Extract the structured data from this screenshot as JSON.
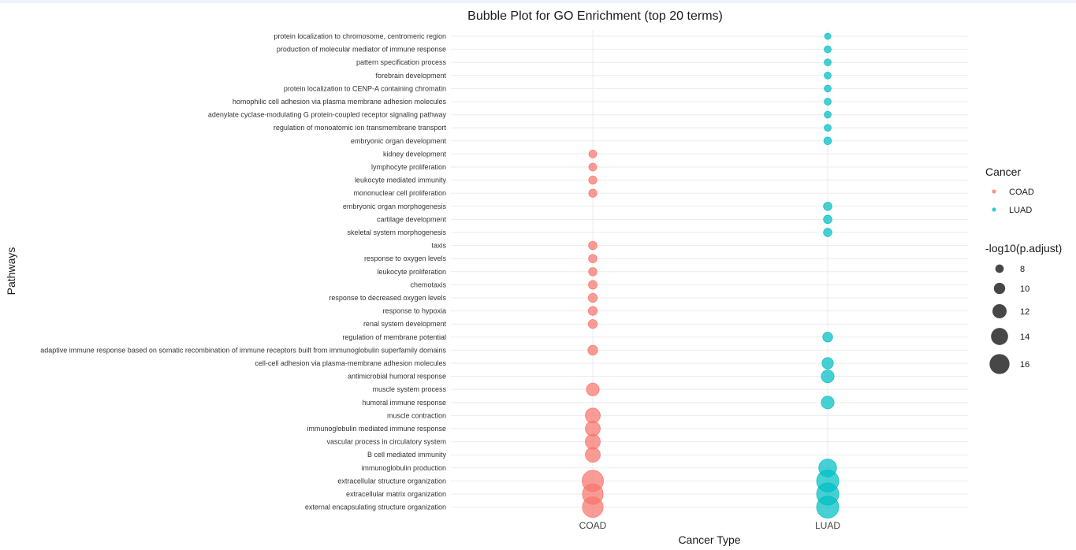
{
  "chart_data": {
    "type": "scatter",
    "title": "Bubble Plot for GO Enrichment (top 20 terms)",
    "xlabel": "Cancer Type",
    "ylabel": "Pathways",
    "categories": [
      "COAD",
      "LUAD"
    ],
    "pathways": [
      "protein localization to chromosome, centromeric region",
      "production of molecular mediator of immune response",
      "pattern specification process",
      "forebrain development",
      "protein localization to CENP-A containing chromatin",
      "homophilic cell adhesion via plasma membrane adhesion molecules",
      "adenylate cyclase-modulating G protein-coupled receptor signaling pathway",
      "regulation of monoatomic ion transmembrane transport",
      "embryonic organ development",
      "kidney development",
      "lymphocyte proliferation",
      "leukocyte mediated immunity",
      "mononuclear cell proliferation",
      "embryonic organ morphogenesis",
      "cartilage development",
      "skeletal system morphogenesis",
      "taxis",
      "response to oxygen levels",
      "leukocyte proliferation",
      "chemotaxis",
      "response to decreased oxygen levels",
      "response to hypoxia",
      "renal system development",
      "regulation of membrane potential",
      "adaptive immune response based on somatic recombination of immune receptors built from immunoglobulin superfamily domains",
      "cell-cell adhesion via plasma-membrane adhesion molecules",
      "antimicrobial humoral response",
      "muscle system process",
      "humoral immune response",
      "muscle contraction",
      "immunoglobulin mediated immune response",
      "vascular process in circulatory system",
      "B cell mediated immunity",
      "immunoglobulin production",
      "extracellular structure organization",
      "extracellular matrix organization",
      "external encapsulating structure organization"
    ],
    "series": [
      {
        "name": "COAD",
        "color": "#F8766D",
        "points": [
          {
            "pathway": "kidney development",
            "value": 7.6
          },
          {
            "pathway": "lymphocyte proliferation",
            "value": 7.6
          },
          {
            "pathway": "leukocyte mediated immunity",
            "value": 7.8
          },
          {
            "pathway": "mononuclear cell proliferation",
            "value": 7.8
          },
          {
            "pathway": "taxis",
            "value": 8.0
          },
          {
            "pathway": "response to oxygen levels",
            "value": 8.0
          },
          {
            "pathway": "leukocyte proliferation",
            "value": 8.0
          },
          {
            "pathway": "chemotaxis",
            "value": 8.2
          },
          {
            "pathway": "response to decreased oxygen levels",
            "value": 8.4
          },
          {
            "pathway": "response to hypoxia",
            "value": 8.4
          },
          {
            "pathway": "renal system development",
            "value": 8.4
          },
          {
            "pathway": "adaptive immune response based on somatic recombination of immune receptors built from immunoglobulin superfamily domains",
            "value": 9.0
          },
          {
            "pathway": "muscle system process",
            "value": 11.0
          },
          {
            "pathway": "muscle contraction",
            "value": 12.5
          },
          {
            "pathway": "immunoglobulin mediated immune response",
            "value": 12.5
          },
          {
            "pathway": "vascular process in circulatory system",
            "value": 12.5
          },
          {
            "pathway": "B cell mediated immunity",
            "value": 12.5
          },
          {
            "pathway": "extracellular structure organization",
            "value": 17.0
          },
          {
            "pathway": "extracellular matrix organization",
            "value": 16.5
          },
          {
            "pathway": "external encapsulating structure organization",
            "value": 16.5
          }
        ]
      },
      {
        "name": "LUAD",
        "color": "#00BFC4",
        "points": [
          {
            "pathway": "protein localization to chromosome, centromeric region",
            "value": 6.5
          },
          {
            "pathway": "production of molecular mediator of immune response",
            "value": 7.0
          },
          {
            "pathway": "pattern specification process",
            "value": 7.0
          },
          {
            "pathway": "forebrain development",
            "value": 7.0
          },
          {
            "pathway": "protein localization to CENP-A containing chromatin",
            "value": 7.0
          },
          {
            "pathway": "homophilic cell adhesion via plasma membrane adhesion molecules",
            "value": 7.0
          },
          {
            "pathway": "adenylate cyclase-modulating G protein-coupled receptor signaling pathway",
            "value": 7.0
          },
          {
            "pathway": "regulation of monoatomic ion transmembrane transport",
            "value": 7.0
          },
          {
            "pathway": "embryonic organ development",
            "value": 7.5
          },
          {
            "pathway": "embryonic organ morphogenesis",
            "value": 8.0
          },
          {
            "pathway": "cartilage development",
            "value": 8.0
          },
          {
            "pathway": "skeletal system morphogenesis",
            "value": 8.0
          },
          {
            "pathway": "regulation of membrane potential",
            "value": 9.0
          },
          {
            "pathway": "cell-cell adhesion via plasma-membrane adhesion molecules",
            "value": 10.0
          },
          {
            "pathway": "antimicrobial humoral response",
            "value": 11.0
          },
          {
            "pathway": "humoral immune response",
            "value": 11.0
          },
          {
            "pathway": "immunoglobulin production",
            "value": 14.5
          },
          {
            "pathway": "extracellular structure organization",
            "value": 17.5
          },
          {
            "pathway": "extracellular matrix organization",
            "value": 17.5
          },
          {
            "pathway": "external encapsulating structure organization",
            "value": 17.5
          }
        ]
      }
    ],
    "legend": {
      "color_title": "Cancer",
      "color_entries": [
        "COAD",
        "LUAD"
      ],
      "size_title": "-log10(p.adjust)",
      "size_entries": [
        8,
        10,
        12,
        14,
        16
      ],
      "placement": "right"
    },
    "size_range": [
      6,
      18
    ],
    "grid": true
  }
}
